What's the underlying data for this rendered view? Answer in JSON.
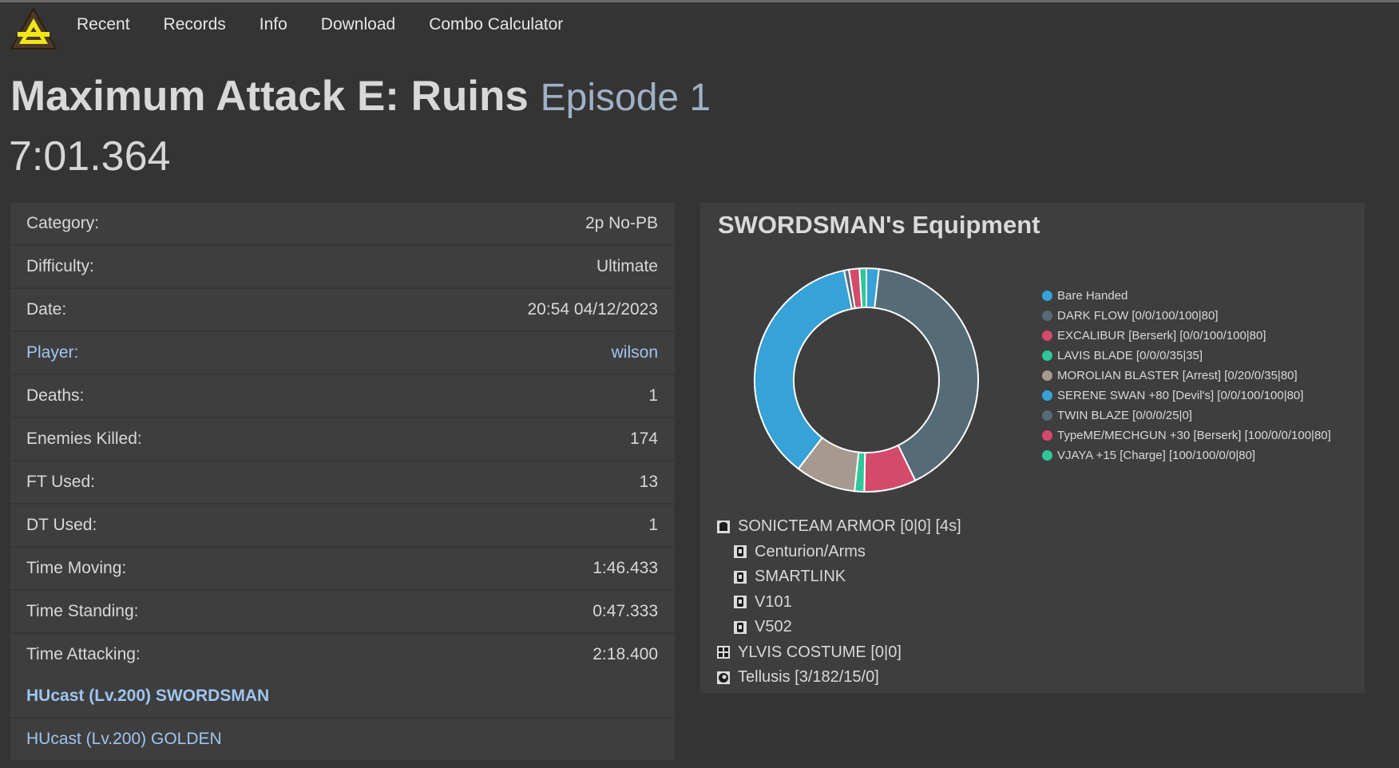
{
  "nav": {
    "logo_icon": "triangle-logo-icon",
    "items": [
      "Recent",
      "Records",
      "Info",
      "Download",
      "Combo Calculator"
    ]
  },
  "quest": {
    "title": "Maximum Attack E: Ruins",
    "episode": "Episode 1",
    "time": "7:01.364"
  },
  "stats": [
    {
      "label": "Category:",
      "value": "2p No-PB"
    },
    {
      "label": "Difficulty:",
      "value": "Ultimate"
    },
    {
      "label": "Date:",
      "value": "20:54 04/12/2023"
    },
    {
      "label": "Player:",
      "value": "wilson"
    },
    {
      "label": "Deaths:",
      "value": "1"
    },
    {
      "label": "Enemies Killed:",
      "value": "174"
    },
    {
      "label": "FT Used:",
      "value": "13"
    },
    {
      "label": "DT Used:",
      "value": "1"
    },
    {
      "label": "Time Moving:",
      "value": "1:46.433"
    },
    {
      "label": "Time Standing:",
      "value": "0:47.333"
    },
    {
      "label": "Time Attacking:",
      "value": "2:18.400"
    }
  ],
  "characters": [
    {
      "label": "HUcast (Lv.200) SWORDSMAN",
      "selected": true
    },
    {
      "label": "HUcast (Lv.200) GOLDEN",
      "selected": false
    }
  ],
  "equipment": {
    "title": "SWORDSMAN's Equipment",
    "weapons": [
      {
        "name": "Bare Handed",
        "color": "#36a2d8"
      },
      {
        "name": "DARK FLOW [0/0/100/100|80]",
        "color": "#566b78"
      },
      {
        "name": "EXCALIBUR [Berserk] [0/0/100/100|80]",
        "color": "#d44a6b"
      },
      {
        "name": "LAVIS BLADE [0/0/0/35|35]",
        "color": "#2ec79a"
      },
      {
        "name": "MOROLIAN BLASTER [Arrest] [0/20/0/35|80]",
        "color": "#a69a8e"
      },
      {
        "name": "SERENE SWAN +80 [Devil's] [0/0/100/100|80]",
        "color": "#36a2d8"
      },
      {
        "name": "TWIN BLAZE [0/0/0/25|0]",
        "color": "#566b78"
      },
      {
        "name": "TypeME/MECHGUN +30 [Berserk] [100/0/0/100|80]",
        "color": "#d44a6b"
      },
      {
        "name": "VJAYA +15 [Charge] [100/100/0/0|80]",
        "color": "#2ec79a"
      }
    ],
    "chart_data": {
      "type": "pie",
      "categories": [
        "Bare Handed",
        "DARK FLOW [0/0/100/100|80]",
        "EXCALIBUR [Berserk] [0/0/100/100|80]",
        "LAVIS BLADE [0/0/0/35|35]",
        "MOROLIAN BLASTER [Arrest] [0/20/0/35|80]",
        "SERENE SWAN +80 [Devil's] [0/0/100/100|80]",
        "TWIN BLAZE [0/0/0/25|0]",
        "TypeME/MECHGUN +30 [Berserk] [100/0/0/100|80]",
        "VJAYA +15 [Charge] [100/100/0/0|80]"
      ],
      "values": [
        1.8,
        41.0,
        7.5,
        1.4,
        8.7,
        36.4,
        0.7,
        1.5,
        1.0
      ],
      "legend": "right"
    },
    "armor": {
      "name": "SONICTEAM ARMOR [0|0] [4s]",
      "icon": "armor-icon"
    },
    "units": [
      {
        "name": "Centurion/Arms",
        "icon": "unit-icon"
      },
      {
        "name": "SMARTLINK",
        "icon": "unit-icon"
      },
      {
        "name": "V101",
        "icon": "unit-icon"
      },
      {
        "name": "V502",
        "icon": "unit-icon"
      }
    ],
    "shield": {
      "name": "YLVIS COSTUME [0|0]",
      "icon": "shield-icon"
    },
    "mag": {
      "name": "Tellusis [3/182/15/0]",
      "icon": "mag-icon"
    }
  }
}
